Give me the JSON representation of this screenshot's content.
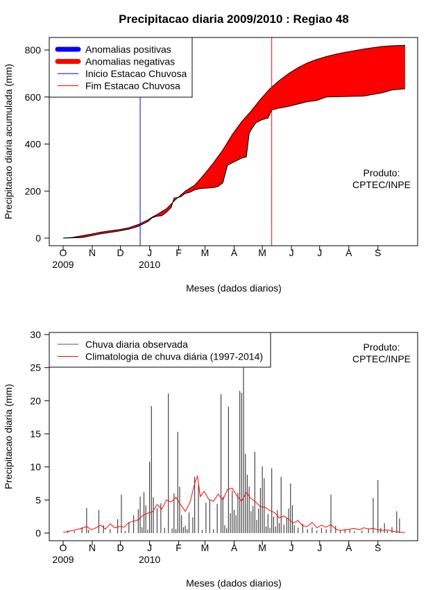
{
  "title": "Precipitacao diaria 2009/2010 : Regiao 48",
  "chart_data": [
    {
      "type": "area",
      "ylabel": "Precipitacao diaria acumulada (mm)",
      "xlabel": "Meses (dados diarios)",
      "x_unit": "days since 2009-10-01",
      "xlim": [
        0,
        364
      ],
      "ylim": [
        0,
        830
      ],
      "yticks": [
        0,
        200,
        400,
        600,
        800
      ],
      "month_ticks": [
        {
          "day": 0,
          "label": "O"
        },
        {
          "day": 31,
          "label": "N"
        },
        {
          "day": 61,
          "label": "D"
        },
        {
          "day": 92,
          "label": "J"
        },
        {
          "day": 123,
          "label": "F"
        },
        {
          "day": 151,
          "label": "M"
        },
        {
          "day": 182,
          "label": "A"
        },
        {
          "day": 212,
          "label": "M"
        },
        {
          "day": 243,
          "label": "J"
        },
        {
          "day": 273,
          "label": "J"
        },
        {
          "day": 304,
          "label": "A"
        },
        {
          "day": 335,
          "label": "S"
        }
      ],
      "year_labels": [
        {
          "day": 0,
          "label": "2009"
        },
        {
          "day": 92,
          "label": "2010"
        }
      ],
      "legend": [
        {
          "label": "Anomalias positivas",
          "color": "#0000ff",
          "style": "thick"
        },
        {
          "label": "Anomalias negativas",
          "color": "#ff0000",
          "style": "thick"
        },
        {
          "label": "Inicio Estacao Chuvosa",
          "color": "#0000ff",
          "style": "thin"
        },
        {
          "label": "Fim Estacao Chuvosa",
          "color": "#ff0000",
          "style": "thin"
        }
      ],
      "legend_position": "top-left",
      "annotation": [
        "Produto:",
        "CPTEC/INPE"
      ],
      "onset_day": 82,
      "end_day": 222,
      "series": [
        {
          "name": "Climatologia acumulada",
          "points": [
            [
              0,
              0
            ],
            [
              10,
              3
            ],
            [
              20,
              10
            ],
            [
              30,
              17
            ],
            [
              40,
              25
            ],
            [
              50,
              31
            ],
            [
              60,
              36
            ],
            [
              70,
              44
            ],
            [
              80,
              58
            ],
            [
              90,
              77
            ],
            [
              95,
              90
            ],
            [
              100,
              100
            ],
            [
              110,
              125
            ],
            [
              120,
              165
            ],
            [
              130,
              200
            ],
            [
              140,
              225
            ],
            [
              150,
              270
            ],
            [
              160,
              320
            ],
            [
              170,
              375
            ],
            [
              180,
              440
            ],
            [
              190,
              495
            ],
            [
              200,
              540
            ],
            [
              210,
              590
            ],
            [
              220,
              635
            ],
            [
              230,
              670
            ],
            [
              240,
              700
            ],
            [
              250,
              725
            ],
            [
              260,
              745
            ],
            [
              270,
              760
            ],
            [
              280,
              772
            ],
            [
              290,
              782
            ],
            [
              300,
              790
            ],
            [
              310,
              797
            ],
            [
              320,
              804
            ],
            [
              330,
              810
            ],
            [
              340,
              815
            ],
            [
              350,
              818
            ],
            [
              364,
              820
            ]
          ]
        },
        {
          "name": "Chuva acumulada observada",
          "points": [
            [
              0,
              0
            ],
            [
              20,
              2
            ],
            [
              30,
              10
            ],
            [
              40,
              18
            ],
            [
              50,
              24
            ],
            [
              60,
              30
            ],
            [
              70,
              38
            ],
            [
              80,
              50
            ],
            [
              85,
              60
            ],
            [
              90,
              70
            ],
            [
              95,
              87
            ],
            [
              100,
              93
            ],
            [
              105,
              95
            ],
            [
              110,
              110
            ],
            [
              115,
              130
            ],
            [
              118,
              170
            ],
            [
              125,
              175
            ],
            [
              130,
              190
            ],
            [
              135,
              195
            ],
            [
              140,
              205
            ],
            [
              145,
              210
            ],
            [
              150,
              212
            ],
            [
              160,
              215
            ],
            [
              165,
              220
            ],
            [
              170,
              235
            ],
            [
              175,
              310
            ],
            [
              180,
              320
            ],
            [
              185,
              330
            ],
            [
              190,
              340
            ],
            [
              195,
              345
            ],
            [
              198,
              445
            ],
            [
              200,
              460
            ],
            [
              205,
              490
            ],
            [
              210,
              500
            ],
            [
              213,
              505
            ],
            [
              218,
              510
            ],
            [
              222,
              545
            ],
            [
              230,
              553
            ],
            [
              240,
              560
            ],
            [
              250,
              570
            ],
            [
              260,
              580
            ],
            [
              270,
              585
            ],
            [
              280,
              600
            ],
            [
              290,
              601
            ],
            [
              300,
              602
            ],
            [
              310,
              603
            ],
            [
              320,
              604
            ],
            [
              340,
              618
            ],
            [
              350,
              630
            ],
            [
              364,
              635
            ]
          ]
        }
      ]
    },
    {
      "type": "bar",
      "ylabel": "Precipitacao diaria (mm)",
      "xlabel": "Meses (dados diarios)",
      "x_unit": "days since 2009-10-01",
      "xlim": [
        0,
        364
      ],
      "ylim": [
        0,
        30
      ],
      "yticks": [
        0,
        5,
        10,
        15,
        20,
        25,
        30
      ],
      "month_ticks": [
        {
          "day": 0,
          "label": "O"
        },
        {
          "day": 31,
          "label": "N"
        },
        {
          "day": 61,
          "label": "D"
        },
        {
          "day": 92,
          "label": "J"
        },
        {
          "day": 123,
          "label": "F"
        },
        {
          "day": 151,
          "label": "M"
        },
        {
          "day": 182,
          "label": "A"
        },
        {
          "day": 212,
          "label": "M"
        },
        {
          "day": 243,
          "label": "J"
        },
        {
          "day": 273,
          "label": "J"
        },
        {
          "day": 304,
          "label": "A"
        },
        {
          "day": 335,
          "label": "S"
        }
      ],
      "year_labels": [
        {
          "day": 0,
          "label": "2009"
        },
        {
          "day": 92,
          "label": "2010"
        }
      ],
      "legend": [
        {
          "label": "Chuva diaria observada",
          "color": "#555555"
        },
        {
          "label": "Climatologia de chuva diária (1997-2014)",
          "color": "#ff0000"
        }
      ],
      "legend_position": "top-left",
      "annotation": [
        "Produto:",
        "CPTEC/INPE"
      ],
      "series": [
        {
          "name": "Chuva diaria observada",
          "days": [
            5,
            12,
            20,
            25,
            27,
            38,
            43,
            50,
            58,
            62,
            66,
            70,
            75,
            80,
            82,
            84,
            86,
            88,
            90,
            92,
            94,
            96,
            100,
            104,
            108,
            112,
            116,
            118,
            120,
            122,
            124,
            126,
            128,
            130,
            132,
            134,
            138,
            140,
            144,
            148,
            152,
            156,
            160,
            164,
            168,
            170,
            172,
            174,
            176,
            178,
            180,
            182,
            184,
            186,
            188,
            190,
            192,
            194,
            196,
            198,
            200,
            202,
            204,
            206,
            208,
            210,
            212,
            214,
            216,
            218,
            220,
            222,
            224,
            226,
            228,
            230,
            232,
            235,
            238,
            240,
            242,
            244,
            246,
            250,
            255,
            260,
            265,
            270,
            275,
            280,
            285,
            290,
            295,
            300,
            305,
            310,
            318,
            325,
            330,
            335,
            338,
            342,
            345,
            350,
            355,
            358
          ],
          "values": [
            0.4,
            0.3,
            0.9,
            3.8,
            0.5,
            3.5,
            1.2,
            0.6,
            2.1,
            5.8,
            0.3,
            1.6,
            2.7,
            3.6,
            5.5,
            0.9,
            6.2,
            4.2,
            0.5,
            10.8,
            19.2,
            5.4,
            3.8,
            4.5,
            0.8,
            21.1,
            0.7,
            6.0,
            0.6,
            15.3,
            7.0,
            2.7,
            0.9,
            1.1,
            0.6,
            3.1,
            2.4,
            8.5,
            7.3,
            0.5,
            4.6,
            5.1,
            0.6,
            4.4,
            21.0,
            5.5,
            1.2,
            0.7,
            19.1,
            3.0,
            6.4,
            3.5,
            2.7,
            6.1,
            21.5,
            21.2,
            25.0,
            12.0,
            8.8,
            7.0,
            3.3,
            4.1,
            12.3,
            2.0,
            3.7,
            6.8,
            10.1,
            8.3,
            1.0,
            2.9,
            0.8,
            9.8,
            2.5,
            1.0,
            3.5,
            1.5,
            8.5,
            1.3,
            2.3,
            3.7,
            7.5,
            4.2,
            1.2,
            0.8,
            1.4,
            0.6,
            0.9,
            0.4,
            0.8,
            0.6,
            5.8,
            1.1,
            0.4,
            0.6,
            0.5,
            0.3,
            0.4,
            0.7,
            5.3,
            8.0,
            0.8,
            1.5,
            0.4,
            0.9,
            3.3,
            2.2
          ]
        },
        {
          "name": "Climatologia de chuva diária (1997-2014)",
          "points": [
            [
              0,
              0.1
            ],
            [
              10,
              0.4
            ],
            [
              20,
              0.7
            ],
            [
              25,
              1.0
            ],
            [
              30,
              0.5
            ],
            [
              35,
              0.8
            ],
            [
              40,
              1.2
            ],
            [
              45,
              0.6
            ],
            [
              50,
              1.4
            ],
            [
              55,
              0.8
            ],
            [
              60,
              1.0
            ],
            [
              65,
              0.9
            ],
            [
              70,
              1.6
            ],
            [
              75,
              1.8
            ],
            [
              80,
              2.0
            ],
            [
              85,
              2.7
            ],
            [
              90,
              3.0
            ],
            [
              95,
              3.2
            ],
            [
              100,
              4.3
            ],
            [
              105,
              3.6
            ],
            [
              110,
              5.0
            ],
            [
              115,
              4.7
            ],
            [
              120,
              5.4
            ],
            [
              125,
              4.3
            ],
            [
              130,
              3.3
            ],
            [
              135,
              4.6
            ],
            [
              140,
              7.5
            ],
            [
              143,
              8.6
            ],
            [
              146,
              5.5
            ],
            [
              150,
              6.3
            ],
            [
              155,
              5.1
            ],
            [
              160,
              4.8
            ],
            [
              165,
              5.9
            ],
            [
              170,
              5.0
            ],
            [
              175,
              6.6
            ],
            [
              180,
              6.8
            ],
            [
              185,
              5.6
            ],
            [
              190,
              4.8
            ],
            [
              195,
              6.1
            ],
            [
              200,
              5.2
            ],
            [
              205,
              4.7
            ],
            [
              210,
              4.0
            ],
            [
              215,
              3.9
            ],
            [
              220,
              3.4
            ],
            [
              225,
              3.1
            ],
            [
              230,
              2.3
            ],
            [
              235,
              2.6
            ],
            [
              240,
              2.1
            ],
            [
              245,
              1.5
            ],
            [
              250,
              1.9
            ],
            [
              255,
              1.1
            ],
            [
              260,
              1.0
            ],
            [
              265,
              1.6
            ],
            [
              270,
              0.8
            ],
            [
              275,
              1.2
            ],
            [
              280,
              0.9
            ],
            [
              285,
              1.3
            ],
            [
              290,
              0.6
            ],
            [
              295,
              0.4
            ],
            [
              300,
              0.5
            ],
            [
              305,
              0.6
            ],
            [
              310,
              0.7
            ],
            [
              315,
              0.5
            ],
            [
              320,
              0.8
            ],
            [
              325,
              0.6
            ],
            [
              330,
              0.7
            ],
            [
              335,
              0.5
            ],
            [
              340,
              0.4
            ],
            [
              345,
              0.5
            ],
            [
              350,
              0.3
            ],
            [
              355,
              0.2
            ],
            [
              360,
              0.1
            ],
            [
              364,
              0.1
            ]
          ]
        }
      ]
    }
  ]
}
